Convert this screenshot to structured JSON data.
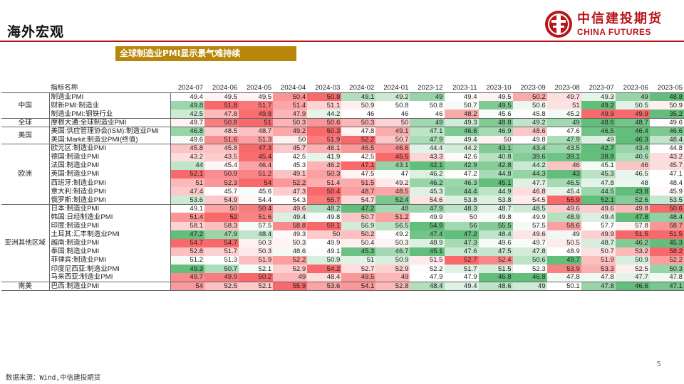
{
  "header": {
    "title": "海外宏观"
  },
  "logo": {
    "cn": "中信建投期货",
    "en": "CHINA FUTURES",
    "color": "#b8151b"
  },
  "banner": {
    "text": "全球制造业PMI显示景气难持续",
    "color": "#b8860b"
  },
  "table": {
    "indicator_header": "指标名称",
    "columns": [
      "2024-07",
      "2024-06",
      "2024-05",
      "2024-04",
      "2024-03",
      "2024-02",
      "2024-01",
      "2023-12",
      "2023-11",
      "2023-10",
      "2023-09",
      "2023-08",
      "2023-07",
      "2023-06",
      "2023-05"
    ],
    "groups": [
      {
        "region": "中国",
        "rows": [
          {
            "name": "制造业PMI",
            "values": [
              "49.4",
              "49.5",
              "49.5",
              "50.4",
              "50.8",
              "49.1",
              "49.2",
              "49",
              "49.4",
              "49.5",
              "50.2",
              "49.7",
              "49.3",
              "49",
              "48.8"
            ]
          },
          {
            "name": "财新PMI:制造业",
            "values": [
              "49.8",
              "51.8",
              "51.7",
              "51.4",
              "51.1",
              "50.9",
              "50.8",
              "50.8",
              "50.7",
              "49.5",
              "50.6",
              "51",
              "49.2",
              "50.5",
              "50.9"
            ]
          },
          {
            "name": "制造业PMI:钢铁行业",
            "values": [
              "42.5",
              "47.8",
              "49.8",
              "47.9",
              "44.2",
              "46",
              "46",
              "46",
              "48.2",
              "45.6",
              "45.8",
              "45.2",
              "49.9",
              "49.9",
              "35.2"
            ]
          }
        ]
      },
      {
        "region": "全球",
        "rows": [
          {
            "name": "摩根大通:全球制造业PMI",
            "values": [
              "49.7",
              "50.8",
              "51",
              "50.3",
              "50.6",
              "50.3",
              "50",
              "49",
              "49.3",
              "48.8",
              "49.2",
              "49",
              "48.6",
              "48.7",
              "49.6"
            ]
          }
        ]
      },
      {
        "region": "美国",
        "rows": [
          {
            "name": "美国:供应管理协会(ISM):制造业PMI",
            "values": [
              "46.8",
              "48.5",
              "48.7",
              "49.2",
              "50.3",
              "47.8",
              "49.1",
              "47.1",
              "46.6",
              "46.9",
              "48.6",
              "47.6",
              "46.5",
              "46.4",
              "46.6"
            ]
          },
          {
            "name": "美国:Markit:制造业PMI(终值)",
            "values": [
              "49.6",
              "51.6",
              "51.3",
              "50",
              "51.9",
              "52.2",
              "50.7",
              "47.9",
              "49.4",
              "50",
              "49.8",
              "47.9",
              "49",
              "46.3",
              "48.4"
            ]
          }
        ]
      },
      {
        "region": "欧洲",
        "rows": [
          {
            "name": "欧元区:制造业PMI",
            "values": [
              "45.8",
              "45.8",
              "47.3",
              "45.7",
              "46.1",
              "46.5",
              "46.6",
              "44.4",
              "44.2",
              "43.1",
              "43.4",
              "43.5",
              "42.7",
              "43.4",
              "44.8"
            ]
          },
          {
            "name": "德国:制造业PMI",
            "values": [
              "43.2",
              "43.5",
              "45.4",
              "42.5",
              "41.9",
              "42.5",
              "45.5",
              "43.3",
              "42.6",
              "40.8",
              "39.6",
              "39.1",
              "38.8",
              "40.6",
              "43.2"
            ]
          },
          {
            "name": "法国:制造业PMI",
            "values": [
              "44",
              "45.4",
              "46.4",
              "45.3",
              "46.2",
              "47.1",
              "43.1",
              "42.1",
              "42.9",
              "42.8",
              "44.2",
              "46",
              "45.1",
              "46",
              "45.7"
            ]
          },
          {
            "name": "英国:制造业PMI",
            "values": [
              "52.1",
              "50.9",
              "51.2",
              "49.1",
              "50.3",
              "47.5",
              "47",
              "46.2",
              "47.2",
              "44.8",
              "44.3",
              "43",
              "45.3",
              "46.5",
              "47.1"
            ]
          },
          {
            "name": "西班牙:制造业PMI",
            "values": [
              "51",
              "52.3",
              "54",
              "52.2",
              "51.4",
              "51.5",
              "49.2",
              "46.2",
              "46.3",
              "45.1",
              "47.7",
              "46.5",
              "47.8",
              "48",
              "48.4"
            ]
          },
          {
            "name": "意大利:制造业PMI",
            "values": [
              "47.4",
              "45.7",
              "45.6",
              "47.3",
              "50.4",
              "48.7",
              "48.5",
              "45.3",
              "44.4",
              "44.9",
              "46.8",
              "45.4",
              "44.5",
              "43.8",
              "45.9"
            ]
          },
          {
            "name": "俄罗斯:制造业PMI",
            "values": [
              "53.6",
              "54.9",
              "54.4",
              "54.3",
              "55.7",
              "54.7",
              "52.4",
              "54.6",
              "53.8",
              "53.8",
              "54.5",
              "55.9",
              "52.1",
              "52.6",
              "53.5"
            ]
          }
        ]
      },
      {
        "region": "亚洲其他区域",
        "rows": [
          {
            "name": "日本:制造业PMI",
            "values": [
              "49.1",
              "50",
              "50.4",
              "49.6",
              "48.2",
              "47.2",
              "48",
              "47.9",
              "48.3",
              "48.7",
              "48.5",
              "49.6",
              "49.6",
              "49.8",
              "50.6"
            ]
          },
          {
            "name": "韩国:日经制造业PMI",
            "values": [
              "51.4",
              "52",
              "51.6",
              "49.4",
              "49.8",
              "50.7",
              "51.2",
              "49.9",
              "50",
              "49.8",
              "49.9",
              "48.9",
              "49.4",
              "47.8",
              "48.4"
            ]
          },
          {
            "name": "印度:制造业PMI",
            "values": [
              "58.1",
              "58.3",
              "57.5",
              "58.8",
              "59.1",
              "56.9",
              "56.5",
              "54.9",
              "56",
              "55.5",
              "57.5",
              "58.6",
              "57.7",
              "57.8",
              "58.7"
            ]
          },
          {
            "name": "土耳其:汇丰制造业PMI",
            "values": [
              "47.2",
              "47.9",
              "48.4",
              "49.3",
              "50",
              "50.2",
              "49.2",
              "47.4",
              "47.2",
              "48.4",
              "49.6",
              "49",
              "49.9",
              "51.5",
              "51.5"
            ]
          },
          {
            "name": "越南:制造业PMI",
            "values": [
              "54.7",
              "54.7",
              "50.3",
              "50.3",
              "49.9",
              "50.4",
              "50.3",
              "48.9",
              "47.3",
              "49.6",
              "49.7",
              "50.5",
              "48.7",
              "46.2",
              "45.3"
            ]
          },
          {
            "name": "泰国:制造业PMI",
            "values": [
              "52.8",
              "51.7",
              "50.3",
              "48.6",
              "49.1",
              "45.3",
              "46.7",
              "45.1",
              "47.6",
              "47.5",
              "47.8",
              "48.9",
              "50.7",
              "53.2",
              "58.2"
            ]
          },
          {
            "name": "菲律宾:制造业PMI",
            "values": [
              "51.2",
              "51.3",
              "51.9",
              "52.2",
              "50.9",
              "51",
              "50.9",
              "51.5",
              "52.7",
              "52.4",
              "50.6",
              "49.7",
              "51.9",
              "50.9",
              "52.2"
            ]
          },
          {
            "name": "印度尼西亚:制造业PMI",
            "values": [
              "49.3",
              "50.7",
              "52.1",
              "52.9",
              "54.2",
              "52.7",
              "52.9",
              "52.2",
              "51.7",
              "51.5",
              "52.3",
              "53.9",
              "53.3",
              "52.5",
              "50.3"
            ]
          },
          {
            "name": "马来西亚:制造业PMI",
            "values": [
              "49.7",
              "49.9",
              "50.2",
              "49",
              "48.4",
              "49.5",
              "49",
              "47.9",
              "47.9",
              "46.8",
              "46.8",
              "47.8",
              "47.8",
              "47.7",
              "47.8"
            ]
          }
        ]
      },
      {
        "region": "南美",
        "rows": [
          {
            "name": "巴西:制造业PMI",
            "values": [
              "54",
              "52.5",
              "52.1",
              "55.9",
              "53.6",
              "54.1",
              "52.8",
              "48.4",
              "49.4",
              "48.6",
              "49",
              "50.1",
              "47.8",
              "46.6",
              "47.1"
            ]
          }
        ]
      }
    ],
    "colors": {
      "low": "#63be7b",
      "mid": "#ffffff",
      "high": "#f8696b"
    }
  },
  "footer": {
    "source": "数据来源：Wind,中信建投期货",
    "page": "5"
  }
}
